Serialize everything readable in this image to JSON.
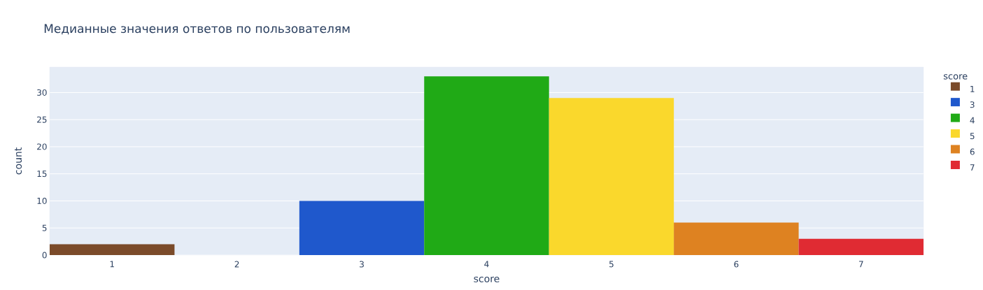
{
  "chart_data": {
    "type": "bar",
    "title": "Медианные значения ответов по пользователям",
    "xlabel": "score",
    "ylabel": "count",
    "legend_title": "score",
    "series": [
      {
        "name": "1",
        "color": "#7b4b2a",
        "x": [
          1
        ],
        "values": [
          2
        ]
      },
      {
        "name": "3",
        "color": "#1f58cc",
        "x": [
          3
        ],
        "values": [
          10
        ]
      },
      {
        "name": "4",
        "color": "#20aa16",
        "x": [
          4
        ],
        "values": [
          33
        ]
      },
      {
        "name": "5",
        "color": "#fad82c",
        "x": [
          5
        ],
        "values": [
          29
        ]
      },
      {
        "name": "6",
        "color": "#de8221",
        "x": [
          6
        ],
        "values": [
          6
        ]
      },
      {
        "name": "7",
        "color": "#e02b33",
        "x": [
          7
        ],
        "values": [
          3
        ]
      }
    ],
    "xlim": [
      0.5,
      7.5
    ],
    "xticks": [
      1,
      2,
      3,
      4,
      5,
      6,
      7
    ],
    "ylim": [
      0,
      34.7
    ],
    "yticks": [
      0,
      5,
      10,
      15,
      20,
      25,
      30
    ],
    "grid": "y",
    "legend": "right"
  }
}
